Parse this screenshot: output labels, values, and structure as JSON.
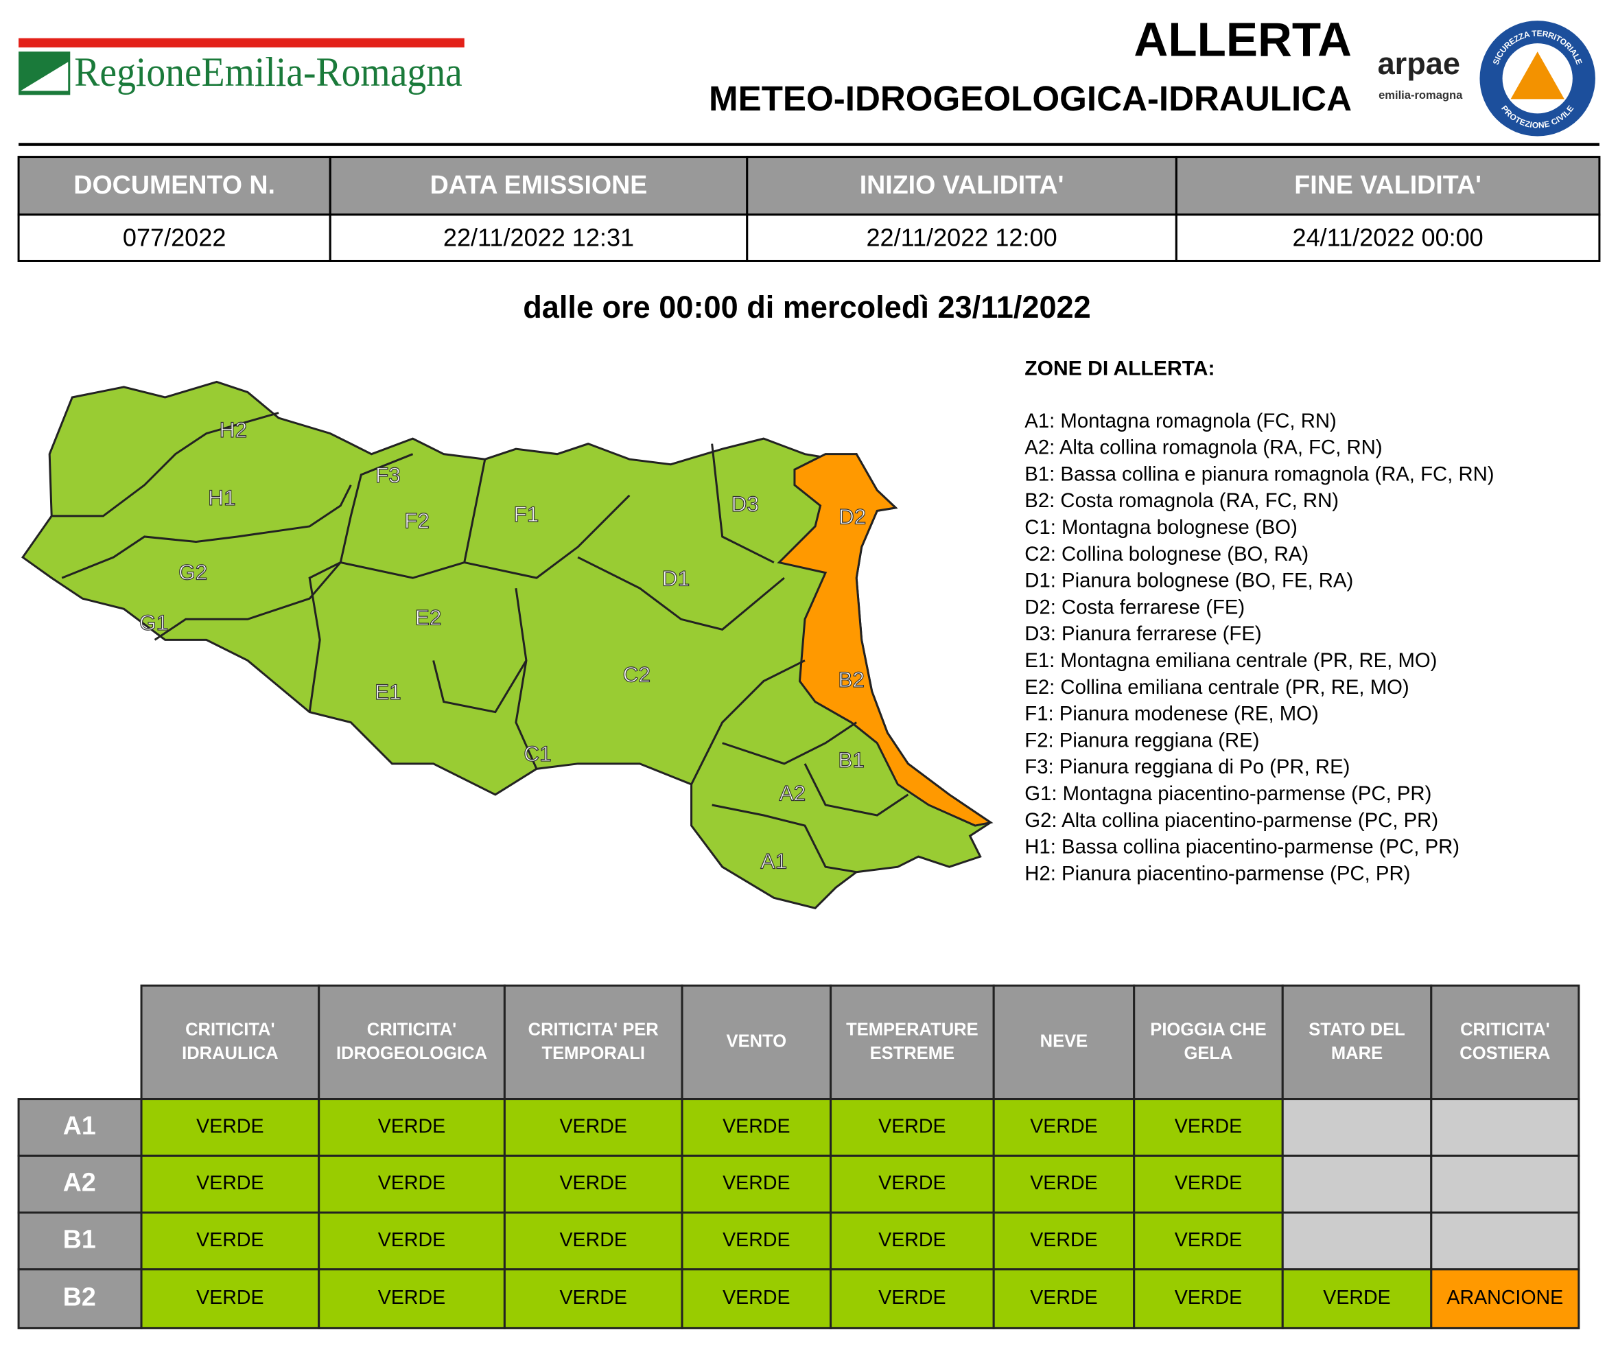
{
  "header": {
    "logo_text": "RegioneEmilia-Romagna",
    "title": "ALLERTA",
    "subtitle": "METEO-IDROGEOLOGICA-IDRAULICA",
    "arpae": "arpae",
    "arpae_sub": "emilia-romagna",
    "badge_top": "SICUREZZA TERRITORIALE",
    "badge_bottom": "PROTEZIONE CIVILE"
  },
  "doc_table": {
    "headers": [
      "DOCUMENTO N.",
      "DATA EMISSIONE",
      "INIZIO VALIDITA'",
      "FINE VALIDITA'"
    ],
    "values": [
      "077/2022",
      "22/11/2022 12:31",
      "22/11/2022 12:00",
      "24/11/2022 00:00"
    ]
  },
  "period": "dalle ore 00:00 di mercoledì 23/11/2022",
  "zones": {
    "title": "ZONE DI ALLERTA:",
    "items": [
      "A1: Montagna romagnola (FC, RN)",
      "A2: Alta collina romagnola (RA, FC, RN)",
      "B1: Bassa collina e pianura romagnola (RA, FC, RN)",
      "B2: Costa romagnola (RA, FC, RN)",
      "C1: Montagna bolognese (BO)",
      "C2: Collina bolognese (BO, RA)",
      "D1: Pianura bolognese (BO, FE, RA)",
      "D2: Costa ferrarese (FE)",
      "D3: Pianura ferrarese (FE)",
      "E1: Montagna emiliana centrale (PR, RE, MO)",
      "E2: Collina emiliana centrale (PR, RE, MO)",
      "F1: Pianura modenese (RE, MO)",
      "F2: Pianura reggiana (RE)",
      "F3: Pianura reggiana di Po (PR, RE)",
      "G1: Montagna piacentino-parmense (PC, PR)",
      "G2: Alta collina piacentino-parmense (PC, PR)",
      "H1: Bassa collina piacentino-parmense (PC, PR)",
      "H2: Pianura piacentino-parmense (PC, PR)"
    ]
  },
  "map": {
    "labels": [
      "H2",
      "H1",
      "G2",
      "G1",
      "F3",
      "F2",
      "F1",
      "E2",
      "E1",
      "D3",
      "D2",
      "D1",
      "C2",
      "C1",
      "B2",
      "B1",
      "A2",
      "A1"
    ],
    "green_color": "#99cc33",
    "orange_color": "#ff9900"
  },
  "alert_table": {
    "columns": [
      [
        "CRITICITA'",
        "IDRAULICA"
      ],
      [
        "CRITICITA'",
        "IDROGEOLOGICA"
      ],
      [
        "CRITICITA' PER",
        "TEMPORALI"
      ],
      [
        "VENTO"
      ],
      [
        "TEMPERATURE",
        "ESTREME"
      ],
      [
        "NEVE"
      ],
      [
        "PIOGGIA CHE",
        "GELA"
      ],
      [
        "STATO DEL",
        "MARE"
      ],
      [
        "CRITICITA'",
        "COSTIERA"
      ]
    ],
    "rows": [
      {
        "zone": "A1",
        "cells": [
          "VERDE",
          "VERDE",
          "VERDE",
          "VERDE",
          "VERDE",
          "VERDE",
          "VERDE",
          null,
          null
        ]
      },
      {
        "zone": "A2",
        "cells": [
          "VERDE",
          "VERDE",
          "VERDE",
          "VERDE",
          "VERDE",
          "VERDE",
          "VERDE",
          null,
          null
        ]
      },
      {
        "zone": "B1",
        "cells": [
          "VERDE",
          "VERDE",
          "VERDE",
          "VERDE",
          "VERDE",
          "VERDE",
          "VERDE",
          null,
          null
        ]
      },
      {
        "zone": "B2",
        "cells": [
          "VERDE",
          "VERDE",
          "VERDE",
          "VERDE",
          "VERDE",
          "VERDE",
          "VERDE",
          "VERDE",
          "ARANCIONE"
        ]
      }
    ],
    "level_colors": {
      "VERDE": "#99cc00",
      "ARANCIONE": "#ff9900"
    },
    "empty_color": "#cccccc"
  }
}
